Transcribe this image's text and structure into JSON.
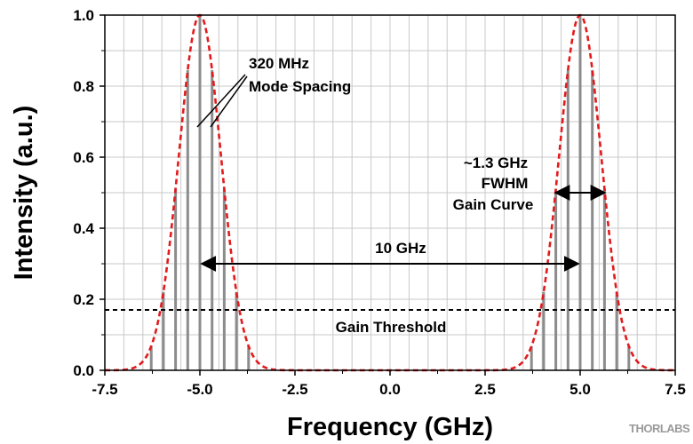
{
  "chart_data": {
    "type": "line",
    "xlabel": "Frequency (GHz)",
    "ylabel": "Intensity (a.u.)",
    "xlim": [
      -7.5,
      7.5
    ],
    "ylim": [
      0.0,
      1.0
    ],
    "xticks": [
      -7.5,
      -5.0,
      -2.5,
      0.0,
      2.5,
      5.0,
      7.5
    ],
    "xtick_labels": [
      "-7.5",
      "-5.0",
      "-2.5",
      "0.0",
      "2.5",
      "5.0",
      "7.5"
    ],
    "yticks": [
      0.0,
      0.2,
      0.4,
      0.6,
      0.8,
      1.0
    ],
    "ytick_labels": [
      "0.0",
      "0.2",
      "0.4",
      "0.6",
      "0.8",
      "1.0"
    ],
    "grid": true,
    "gain_curve": {
      "style": "dashed",
      "color": "#e31a1c",
      "peaks": [
        -5.0,
        5.0
      ],
      "fwhm_ghz": 1.3,
      "peak_value": 1.0
    },
    "modes": {
      "style": "vertical-lines",
      "color": "#8c8c8c",
      "spacing_ghz": 0.32,
      "positions": [
        -6.28,
        -5.96,
        -5.64,
        -5.32,
        -5.0,
        -4.68,
        -4.36,
        -4.04,
        -3.72,
        3.72,
        4.04,
        4.36,
        4.68,
        5.0,
        5.32,
        5.64,
        5.96,
        6.28
      ]
    },
    "threshold": {
      "value": 0.17,
      "style": "dashed",
      "color": "#000000"
    },
    "annotations": {
      "mode_spacing": {
        "lines": [
          "320 MHz",
          "Mode Spacing"
        ]
      },
      "fwhm": {
        "lines": [
          "~1.3 GHz",
          "FWHM",
          "Gain Curve"
        ],
        "from": 4.35,
        "to": 5.65,
        "y": 0.5
      },
      "separation": {
        "label": "10 GHz",
        "from": -5.0,
        "to": 5.0,
        "y": 0.3
      },
      "threshold_label": "Gain Threshold"
    }
  },
  "logo": {
    "text": "THORLABS"
  }
}
